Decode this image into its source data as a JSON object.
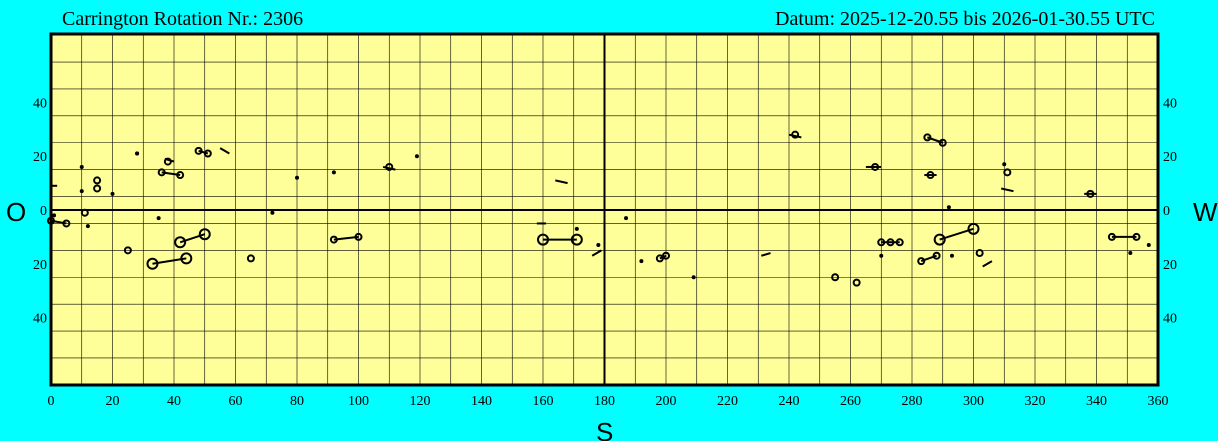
{
  "header": {
    "rotation_label": "Carrington Rotation Nr.: 2306",
    "date_label": "Datum: 2025-12-20.55 bis 2026-01-30.55 UTC"
  },
  "directions": {
    "east": "O",
    "west": "W",
    "south": "S"
  },
  "colors": {
    "background": "#00ffff",
    "plot": "#ffff99",
    "ink": "#000000"
  },
  "chart_data": {
    "type": "scatter",
    "title": "",
    "xlabel": "",
    "ylabel": "",
    "xlim": [
      0,
      360
    ],
    "ylim": [
      -65,
      65
    ],
    "x_ticks": [
      0,
      20,
      40,
      60,
      80,
      100,
      120,
      140,
      160,
      180,
      200,
      220,
      240,
      260,
      280,
      300,
      320,
      340,
      360
    ],
    "y_ticks": [
      {
        "value": 40,
        "label": "40"
      },
      {
        "value": 20,
        "label": "20"
      },
      {
        "value": 0,
        "label": "0"
      },
      {
        "value": -20,
        "label": "20"
      },
      {
        "value": -40,
        "label": "40"
      }
    ],
    "grid": true,
    "grid_step_x": 10,
    "grid_step_y": 10,
    "dots": [
      [
        28,
        21
      ],
      [
        80,
        12
      ],
      [
        92,
        14
      ],
      [
        119,
        20
      ],
      [
        10,
        16
      ],
      [
        10,
        7
      ],
      [
        20,
        6
      ],
      [
        1,
        -2
      ],
      [
        35,
        -3
      ],
      [
        72,
        -1
      ],
      [
        12,
        -6
      ],
      [
        187,
        -3
      ],
      [
        178,
        -13
      ],
      [
        171,
        -7
      ],
      [
        192,
        -19
      ],
      [
        209,
        -25
      ],
      [
        270,
        -17
      ],
      [
        293,
        -17
      ],
      [
        292,
        1
      ],
      [
        310,
        17
      ],
      [
        351,
        -16
      ],
      [
        357,
        -13
      ],
      [
        28,
        21
      ]
    ],
    "spots": [
      {
        "x": 15,
        "y": 11,
        "r": 3
      },
      {
        "x": 15,
        "y": 8,
        "r": 3
      },
      {
        "x": 38,
        "y": 18,
        "r": 3
      },
      {
        "x": 36,
        "y": 14,
        "r": 3
      },
      {
        "x": 42,
        "y": 13,
        "r": 3
      },
      {
        "x": 48,
        "y": 22,
        "r": 3
      },
      {
        "x": 51,
        "y": 21,
        "r": 3
      },
      {
        "x": 242,
        "y": 28,
        "r": 3
      },
      {
        "x": 285,
        "y": 27,
        "r": 3
      },
      {
        "x": 290,
        "y": 25,
        "r": 3
      },
      {
        "x": 268,
        "y": 16,
        "r": 3
      },
      {
        "x": 286,
        "y": 13,
        "r": 3
      },
      {
        "x": 311,
        "y": 14,
        "r": 3
      },
      {
        "x": 338,
        "y": 6,
        "r": 3
      },
      {
        "x": 110,
        "y": 16,
        "r": 3
      },
      {
        "x": 0,
        "y": -4,
        "r": 3
      },
      {
        "x": 5,
        "y": -5,
        "r": 3
      },
      {
        "x": 11,
        "y": -1,
        "r": 3
      },
      {
        "x": 25,
        "y": -15,
        "r": 3
      },
      {
        "x": 65,
        "y": -18,
        "r": 3
      },
      {
        "x": 92,
        "y": -11,
        "r": 3
      },
      {
        "x": 100,
        "y": -10,
        "r": 3
      },
      {
        "x": 198,
        "y": -18,
        "r": 3
      },
      {
        "x": 200,
        "y": -17,
        "r": 3
      },
      {
        "x": 255,
        "y": -25,
        "r": 3
      },
      {
        "x": 262,
        "y": -27,
        "r": 3
      },
      {
        "x": 270,
        "y": -12,
        "r": 3
      },
      {
        "x": 273,
        "y": -12,
        "r": 3
      },
      {
        "x": 276,
        "y": -12,
        "r": 3
      },
      {
        "x": 283,
        "y": -19,
        "r": 3
      },
      {
        "x": 288,
        "y": -17,
        "r": 3
      },
      {
        "x": 302,
        "y": -16,
        "r": 3
      },
      {
        "x": 345,
        "y": -10,
        "r": 3
      },
      {
        "x": 353,
        "y": -10,
        "r": 3
      },
      {
        "x": 42,
        "y": -12,
        "r": 5
      },
      {
        "x": 50,
        "y": -9,
        "r": 5
      },
      {
        "x": 33,
        "y": -20,
        "r": 5
      },
      {
        "x": 44,
        "y": -18,
        "r": 5
      },
      {
        "x": 160,
        "y": -11,
        "r": 5
      },
      {
        "x": 171,
        "y": -11,
        "r": 5
      },
      {
        "x": 289,
        "y": -11,
        "r": 5
      },
      {
        "x": 300,
        "y": -7,
        "r": 5
      }
    ],
    "links": [
      [
        36,
        14,
        42,
        13
      ],
      [
        48,
        22,
        51,
        21
      ],
      [
        285,
        27,
        290,
        25
      ],
      [
        0,
        -4,
        5,
        -5
      ],
      [
        92,
        -11,
        100,
        -10
      ],
      [
        283,
        -19,
        288,
        -17
      ],
      [
        345,
        -10,
        353,
        -10
      ],
      [
        42,
        -12,
        50,
        -9
      ],
      [
        33,
        -20,
        44,
        -18
      ],
      [
        160,
        -11,
        171,
        -11
      ],
      [
        289,
        -11,
        300,
        -7
      ],
      [
        198,
        -18,
        200,
        -17
      ],
      [
        270,
        -12,
        276,
        -12
      ]
    ],
    "dashes": [
      [
        0,
        9,
        2,
        9
      ],
      [
        37,
        19,
        40,
        18
      ],
      [
        55,
        23,
        58,
        21
      ],
      [
        108,
        16,
        112,
        15
      ],
      [
        164,
        11,
        168,
        10
      ],
      [
        158,
        -5,
        161,
        -5
      ],
      [
        176,
        -17,
        179,
        -15
      ],
      [
        231,
        -17,
        234,
        -16
      ],
      [
        240,
        28,
        244,
        27
      ],
      [
        265,
        16,
        270,
        16
      ],
      [
        284,
        13,
        288,
        13
      ],
      [
        309,
        8,
        313,
        7
      ],
      [
        303,
        -21,
        306,
        -19
      ],
      [
        336,
        6,
        340,
        6
      ]
    ]
  }
}
